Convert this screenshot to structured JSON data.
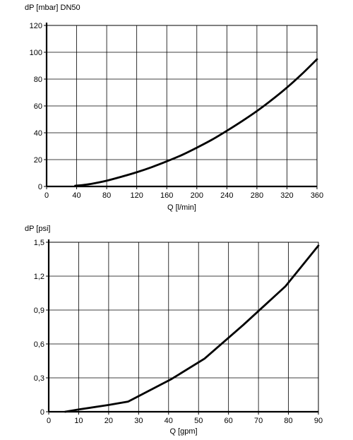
{
  "chart_data": [
    {
      "type": "line",
      "title": "",
      "ylabel": "dP [mbar] DN50",
      "xlabel": "Q [l/min]",
      "xlim": [
        0,
        360
      ],
      "ylim": [
        0,
        120
      ],
      "xticks": [
        0,
        40,
        80,
        120,
        160,
        200,
        240,
        280,
        320,
        360
      ],
      "yticks": [
        0,
        20,
        40,
        60,
        80,
        100,
        120
      ],
      "grid": true,
      "series": [
        {
          "x": [
            38,
            50,
            60,
            80,
            100,
            120,
            140,
            160,
            180,
            200,
            220,
            240,
            260,
            280,
            300,
            320,
            340,
            360
          ],
          "y": [
            0.5,
            1.2,
            2.0,
            4.3,
            7.3,
            10.6,
            14.4,
            18.7,
            23.4,
            28.9,
            34.8,
            41.5,
            48.6,
            56.2,
            64.6,
            73.7,
            83.8,
            94.8
          ]
        }
      ],
      "line_color": "#000000"
    },
    {
      "type": "line",
      "title": "",
      "ylabel": "dP [psi]",
      "xlabel": "Q [gpm]",
      "xlim": [
        0,
        90
      ],
      "ylim": [
        0,
        1.5
      ],
      "xticks": [
        0,
        10,
        20,
        30,
        40,
        50,
        60,
        70,
        80,
        90
      ],
      "yticks": [
        "0",
        "0,3",
        "0,6",
        "0,9",
        "1,2",
        "1,5"
      ],
      "grid": true,
      "series": [
        {
          "x": [
            5.5,
            10,
            20,
            26.5,
            41,
            52,
            65,
            79,
            90
          ],
          "y": [
            0,
            0.02,
            0.06,
            0.09,
            0.29,
            0.47,
            0.77,
            1.11,
            1.47
          ]
        }
      ],
      "line_color": "#000000"
    }
  ]
}
